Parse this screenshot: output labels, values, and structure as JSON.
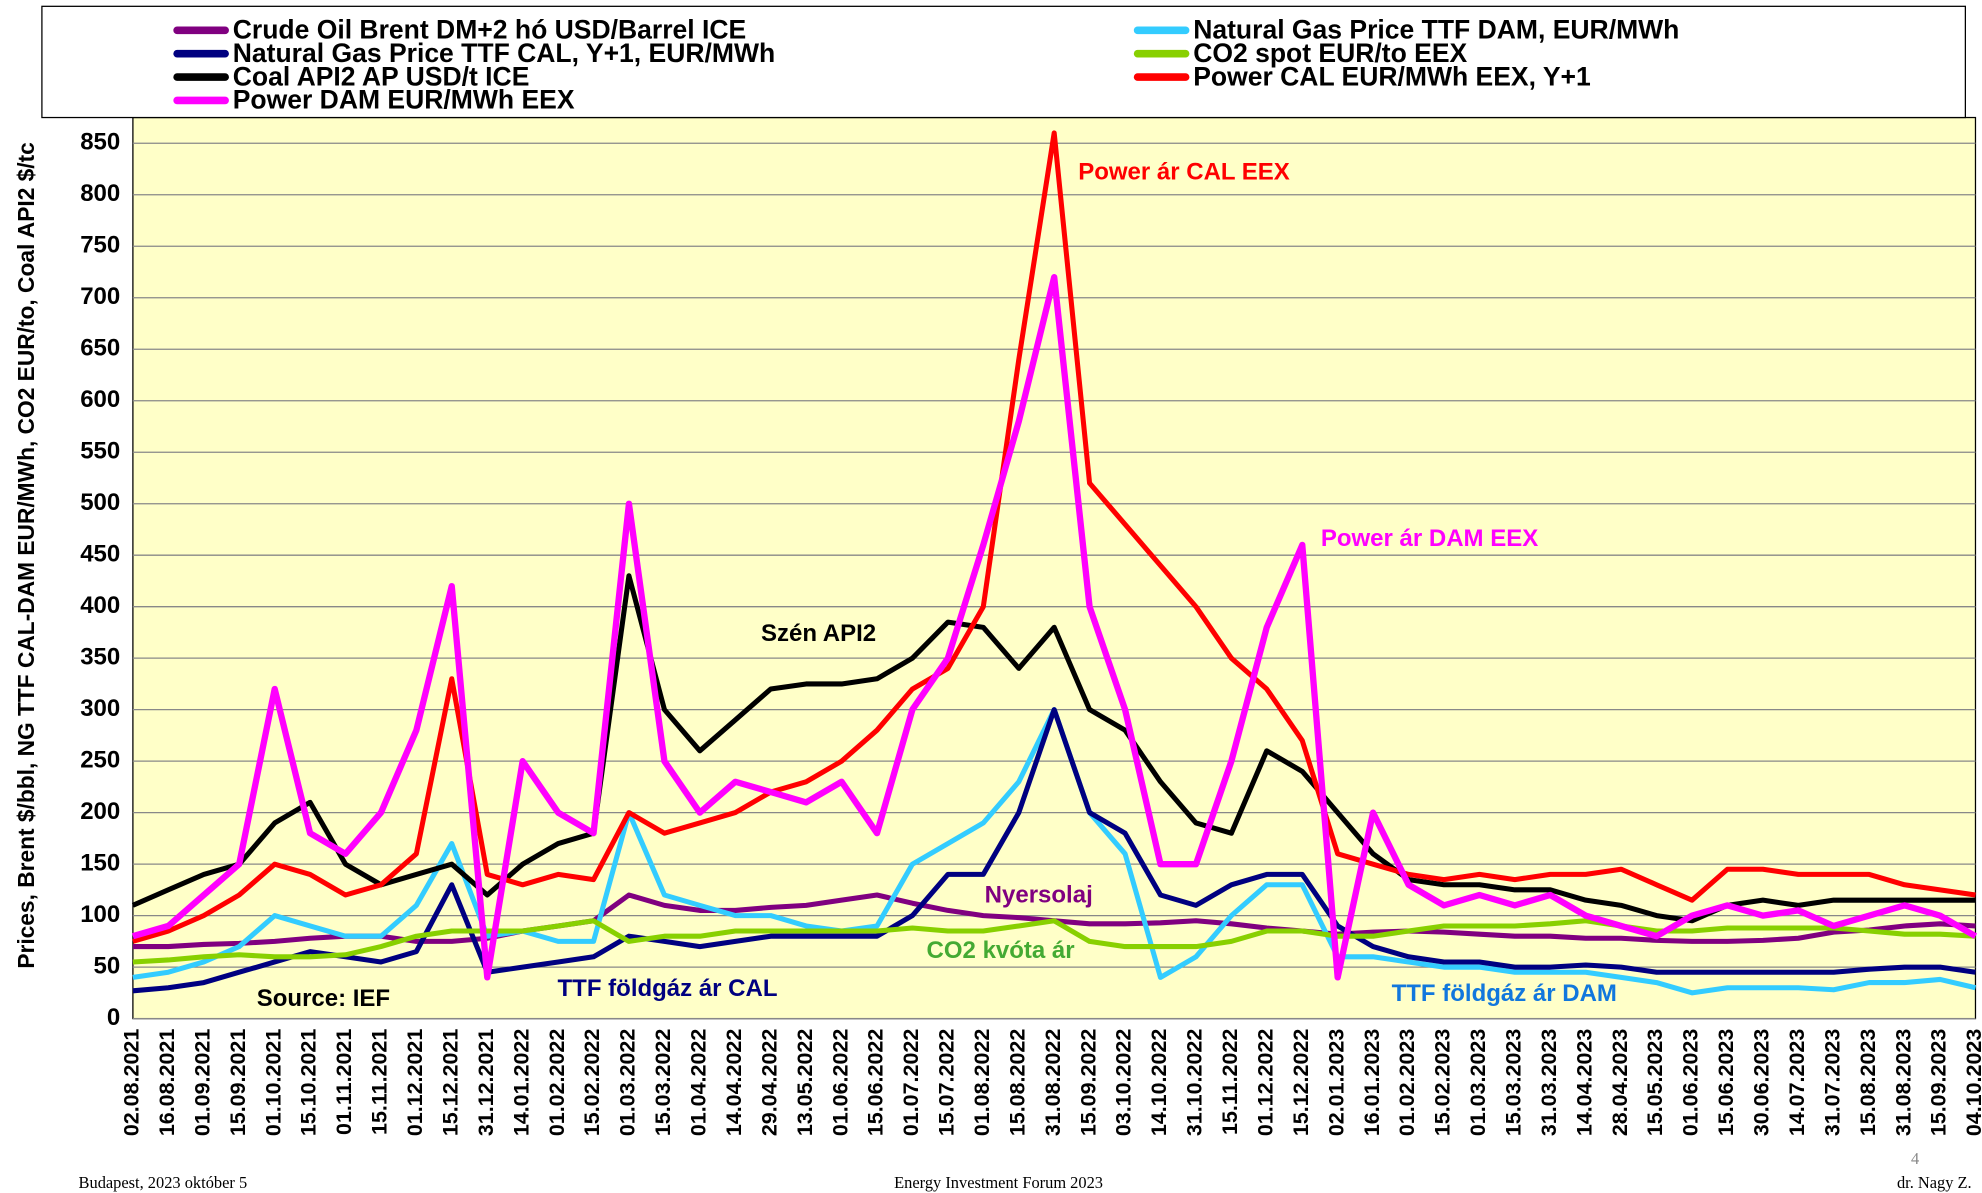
{
  "chart_data": {
    "type": "line",
    "y_label": "Prices, Brent $/bbl, NG TTF CAL-DAM EUR/MWh, CO2 EUR/to, Coal API2 $/tc",
    "categories": [
      "02.08.2021",
      "16.08.2021",
      "01.09.2021",
      "15.09.2021",
      "01.10.2021",
      "15.10.2021",
      "01.11.2021",
      "15.11.2021",
      "01.12.2021",
      "15.12.2021",
      "31.12.2021",
      "14.01.2022",
      "01.02.2022",
      "15.02.2022",
      "01.03.2022",
      "15.03.2022",
      "01.04.2022",
      "14.04.2022",
      "29.04.2022",
      "13.05.2022",
      "01.06.2022",
      "15.06.2022",
      "01.07.2022",
      "15.07.2022",
      "01.08.2022",
      "15.08.2022",
      "31.08.2022",
      "15.09.2022",
      "03.10.2022",
      "14.10.2022",
      "31.10.2022",
      "15.11.2022",
      "01.12.2022",
      "15.12.2022",
      "02.01.2023",
      "16.01.2023",
      "01.02.2023",
      "15.02.2023",
      "01.03.2023",
      "15.03.2023",
      "31.03.2023",
      "14.04.2023",
      "28.04.2023",
      "15.05.2023",
      "01.06.2023",
      "15.06.2023",
      "30.06.2023",
      "14.07.2023",
      "31.07.2023",
      "15.08.2023",
      "31.08.2023",
      "15.09.2023",
      "04.10.2023"
    ],
    "series": [
      {
        "name": "Crude Oil Brent DM+2 hó USD/Barrel ICE",
        "color": "#800080",
        "values": [
          70,
          70,
          72,
          73,
          75,
          78,
          80,
          80,
          75,
          75,
          78,
          85,
          90,
          95,
          120,
          110,
          105,
          105,
          108,
          110,
          115,
          120,
          112,
          105,
          100,
          98,
          95,
          92,
          92,
          93,
          95,
          92,
          88,
          85,
          82,
          84,
          85,
          84,
          82,
          80,
          80,
          78,
          78,
          76,
          75,
          75,
          76,
          78,
          84,
          86,
          90,
          92,
          90
        ]
      },
      {
        "name": "Natural Gas Price TTF DAM, EUR/MWh",
        "color": "#33ccff",
        "values": [
          40,
          45,
          55,
          70,
          100,
          90,
          80,
          80,
          110,
          170,
          80,
          85,
          75,
          75,
          200,
          120,
          110,
          100,
          100,
          90,
          85,
          90,
          150,
          170,
          190,
          230,
          300,
          200,
          160,
          40,
          60,
          100,
          130,
          130,
          60,
          60,
          55,
          50,
          50,
          45,
          45,
          45,
          40,
          35,
          25,
          30,
          30,
          30,
          28,
          35,
          35,
          38,
          30
        ]
      },
      {
        "name": "Natural Gas Price TTF CAL, Y+1, EUR/MWh",
        "color": "#000080",
        "values": [
          27,
          30,
          35,
          45,
          55,
          65,
          60,
          55,
          65,
          130,
          45,
          50,
          55,
          60,
          80,
          75,
          70,
          75,
          80,
          80,
          80,
          80,
          100,
          140,
          140,
          200,
          300,
          200,
          180,
          120,
          110,
          130,
          140,
          140,
          90,
          70,
          60,
          55,
          55,
          50,
          50,
          52,
          50,
          45,
          45,
          45,
          45,
          45,
          45,
          48,
          50,
          50,
          45
        ]
      },
      {
        "name": "CO2 spot EUR/to EEX",
        "color": "#88d000",
        "values": [
          55,
          57,
          60,
          62,
          60,
          60,
          62,
          70,
          80,
          85,
          85,
          85,
          90,
          95,
          75,
          80,
          80,
          85,
          85,
          85,
          85,
          85,
          88,
          85,
          85,
          90,
          95,
          75,
          70,
          70,
          70,
          75,
          85,
          85,
          80,
          80,
          85,
          90,
          90,
          90,
          92,
          95,
          90,
          85,
          85,
          88,
          88,
          88,
          88,
          85,
          82,
          82,
          80
        ]
      },
      {
        "name": "Coal API2 AP USD/t ICE",
        "color": "#000000",
        "values": [
          110,
          125,
          140,
          150,
          190,
          210,
          150,
          130,
          140,
          150,
          120,
          150,
          170,
          180,
          430,
          300,
          260,
          290,
          320,
          325,
          325,
          330,
          350,
          385,
          380,
          340,
          380,
          300,
          280,
          230,
          190,
          180,
          260,
          240,
          200,
          160,
          135,
          130,
          130,
          125,
          125,
          115,
          110,
          100,
          95,
          110,
          115,
          110,
          115,
          115,
          115,
          115,
          115
        ]
      },
      {
        "name": "Power CAL EUR/MWh EEX, Y+1",
        "color": "#ff0000",
        "values": [
          75,
          85,
          100,
          120,
          150,
          140,
          120,
          130,
          160,
          330,
          140,
          130,
          140,
          135,
          200,
          180,
          190,
          200,
          220,
          230,
          250,
          280,
          320,
          340,
          400,
          640,
          860,
          520,
          480,
          440,
          400,
          350,
          320,
          270,
          160,
          150,
          140,
          135,
          140,
          135,
          140,
          140,
          145,
          130,
          115,
          145,
          145,
          140,
          140,
          140,
          130,
          125,
          120
        ]
      },
      {
        "name": "Power DAM EUR/MWh EEX",
        "color": "#ff00ff",
        "values": [
          80,
          90,
          120,
          150,
          320,
          180,
          160,
          200,
          280,
          420,
          40,
          250,
          200,
          180,
          500,
          250,
          200,
          230,
          220,
          210,
          230,
          180,
          300,
          350,
          460,
          580,
          720,
          400,
          300,
          150,
          150,
          250,
          380,
          460,
          40,
          200,
          130,
          110,
          120,
          110,
          120,
          100,
          90,
          80,
          100,
          110,
          100,
          105,
          90,
          100,
          110,
          100,
          80
        ]
      }
    ],
    "ylim": [
      0,
      875
    ],
    "yticks": [
      0,
      50,
      100,
      150,
      200,
      250,
      300,
      350,
      400,
      450,
      500,
      550,
      600,
      650,
      700,
      750,
      800,
      850
    ],
    "grid": true,
    "background": "#ffffc8",
    "annotations": [
      {
        "text": "Power ár CAL EEX",
        "color": "#ff0000"
      },
      {
        "text": "Power ár DAM EEX",
        "color": "#ff00ff"
      },
      {
        "text": "Szén API2",
        "color": "#000000"
      },
      {
        "text": "Nyersolaj",
        "color": "#800080"
      },
      {
        "text": "CO2 kvóta ár",
        "color": "#44aa33"
      },
      {
        "text": "TTF földgáz ár CAL",
        "color": "#000080"
      },
      {
        "text": "TTF földgáz ár DAM",
        "color": "#1177dd"
      },
      {
        "text": "Source:  IEF",
        "color": "#000000"
      }
    ]
  },
  "footer": {
    "left": "Budapest, 2023 október 5",
    "center": "Energy Investment Forum 2023",
    "right": "dr. Nagy Z.",
    "page": "4"
  }
}
